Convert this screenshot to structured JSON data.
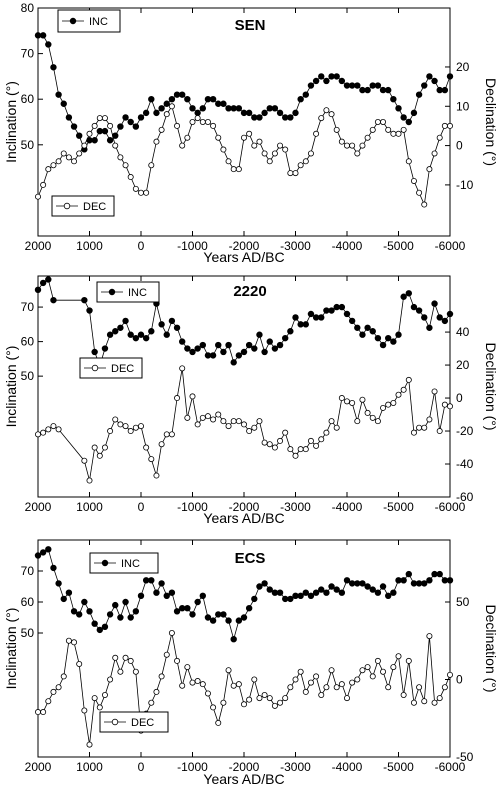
{
  "chart_data": [
    {
      "type": "line",
      "title": "SEN",
      "xlabel": "Years AD/BC",
      "ylabel_left": "Inclination (°)",
      "ylabel_right": "Declination (°)",
      "xlim": [
        2000,
        -6000
      ],
      "x_ticks": [
        2000,
        1000,
        0,
        -1000,
        -2000,
        -3000,
        -4000,
        -5000,
        -6000
      ],
      "x_tick_labels": [
        "2000",
        "1000",
        "0",
        "-1000",
        "-2000",
        "-3000",
        "-4000",
        "-5000",
        "-6000"
      ],
      "inc_ylim": [
        30,
        80
      ],
      "inc_ticks": [
        50,
        60,
        70,
        80
      ],
      "dec_ylim": [
        -23,
        35
      ],
      "dec_ticks": [
        -10,
        0,
        10,
        20
      ],
      "legend_inc": "INC",
      "legend_dec": "DEC",
      "series": [
        {
          "name": "INC",
          "x": [
            2000,
            1900,
            1800,
            1700,
            1600,
            1500,
            1400,
            1300,
            1200,
            1100,
            1000,
            900,
            800,
            700,
            600,
            500,
            400,
            300,
            200,
            100,
            0,
            -100,
            -200,
            -300,
            -400,
            -500,
            -600,
            -700,
            -800,
            -900,
            -1000,
            -1100,
            -1200,
            -1300,
            -1400,
            -1500,
            -1600,
            -1700,
            -1800,
            -1900,
            -2000,
            -2100,
            -2200,
            -2300,
            -2400,
            -2500,
            -2600,
            -2700,
            -2800,
            -2900,
            -3000,
            -3100,
            -3200,
            -3300,
            -3400,
            -3500,
            -3600,
            -3700,
            -3800,
            -3900,
            -4000,
            -4100,
            -4200,
            -4300,
            -4400,
            -4500,
            -4600,
            -4700,
            -4800,
            -4900,
            -5000,
            -5100,
            -5200,
            -5300,
            -5400,
            -5500,
            -5600,
            -5700,
            -5800,
            -5900,
            -6000
          ],
          "values": [
            74,
            74,
            72,
            67,
            61,
            59,
            56,
            54,
            52,
            49,
            51,
            51,
            53,
            53,
            51,
            52,
            54,
            56,
            55,
            54,
            56,
            57,
            60,
            57,
            58,
            59,
            60,
            61,
            61,
            60,
            58,
            57,
            58,
            60,
            60,
            59,
            59,
            58,
            58,
            58,
            57,
            57,
            56,
            56,
            57,
            58,
            58,
            57,
            56,
            56,
            57,
            60,
            61,
            63,
            64,
            65,
            64,
            65,
            65,
            64,
            63,
            63,
            63,
            62,
            62,
            63,
            63,
            62,
            62,
            60,
            58,
            56,
            55,
            57,
            61,
            63,
            65,
            64,
            62,
            62,
            65
          ]
        },
        {
          "name": "DEC",
          "x": [
            2000,
            1900,
            1800,
            1700,
            1600,
            1500,
            1400,
            1300,
            1200,
            1100,
            1000,
            900,
            800,
            700,
            600,
            500,
            400,
            300,
            200,
            100,
            0,
            -100,
            -200,
            -300,
            -400,
            -500,
            -600,
            -700,
            -800,
            -900,
            -1000,
            -1100,
            -1200,
            -1300,
            -1400,
            -1500,
            -1600,
            -1700,
            -1800,
            -1900,
            -2000,
            -2100,
            -2200,
            -2300,
            -2400,
            -2500,
            -2600,
            -2700,
            -2800,
            -2900,
            -3000,
            -3100,
            -3200,
            -3300,
            -3400,
            -3500,
            -3600,
            -3700,
            -3800,
            -3900,
            -4000,
            -4100,
            -4200,
            -4300,
            -4400,
            -4500,
            -4600,
            -4700,
            -4800,
            -4900,
            -5000,
            -5100,
            -5200,
            -5300,
            -5400,
            -5500,
            -5600,
            -5700,
            -5800,
            -5900,
            -6000
          ],
          "values": [
            -13,
            -10,
            -6,
            -5,
            -4,
            -2,
            -3,
            -4,
            -2,
            0,
            3,
            5,
            7,
            7,
            5,
            0,
            -3,
            -5,
            -8,
            -11,
            -12,
            -12,
            -5,
            1,
            4,
            8,
            10,
            5,
            0,
            2,
            6,
            7,
            6,
            6,
            5,
            2,
            -1,
            -4,
            -6,
            -6,
            2,
            3,
            0,
            1,
            -2,
            -4,
            -2,
            0,
            -1,
            -7,
            -7,
            -5,
            -4,
            -2,
            3,
            7,
            9,
            8,
            4,
            1,
            0,
            0,
            -2,
            0,
            2,
            4,
            6,
            6,
            4,
            3,
            3,
            4,
            -4,
            -9,
            -12,
            -15,
            -6,
            -2,
            2,
            5,
            5
          ]
        }
      ]
    },
    {
      "type": "line",
      "title": "2220",
      "xlabel": "Years AD/BC",
      "ylabel_left": "Inclination (°)",
      "ylabel_right": "Declination (°)",
      "xlim": [
        2000,
        -6000
      ],
      "x_ticks": [
        2000,
        1000,
        0,
        -1000,
        -2000,
        -3000,
        -4000,
        -5000,
        -6000
      ],
      "x_tick_labels": [
        "2000",
        "1000",
        "0",
        "-1000",
        "-2000",
        "-3000",
        "-4000",
        "-5000",
        "-6000"
      ],
      "inc_ylim": [
        15,
        79
      ],
      "inc_ticks": [
        50,
        60,
        70
      ],
      "dec_ylim": [
        -60,
        74
      ],
      "dec_ticks": [
        -60,
        -40,
        -20,
        0,
        20,
        40
      ],
      "legend_inc": "INC",
      "legend_dec": "DEC",
      "series": [
        {
          "name": "INC",
          "x": [
            2000,
            1900,
            1800,
            1700,
            1100,
            1000,
            900,
            800,
            700,
            600,
            500,
            400,
            300,
            200,
            100,
            0,
            -100,
            -200,
            -300,
            -400,
            -500,
            -600,
            -700,
            -800,
            -900,
            -1000,
            -1100,
            -1200,
            -1300,
            -1400,
            -1500,
            -1600,
            -1700,
            -1800,
            -1900,
            -2000,
            -2100,
            -2200,
            -2300,
            -2400,
            -2500,
            -2600,
            -2700,
            -2800,
            -2900,
            -3000,
            -3100,
            -3200,
            -3300,
            -3400,
            -3500,
            -3600,
            -3700,
            -3800,
            -3900,
            -4000,
            -4100,
            -4200,
            -4300,
            -4400,
            -4500,
            -4600,
            -4700,
            -4800,
            -4900,
            -5000,
            -5100,
            -5200,
            -5300,
            -5400,
            -5500,
            -5600,
            -5700,
            -5800,
            -5900,
            -6000
          ],
          "values": [
            75,
            77,
            78,
            72,
            72,
            69,
            57,
            53,
            58,
            62,
            63,
            64,
            66,
            62,
            61,
            62,
            61,
            63,
            71,
            65,
            62,
            66,
            64,
            60,
            58,
            57,
            58,
            59,
            56,
            56,
            59,
            57,
            59,
            54,
            56,
            57,
            59,
            58,
            62,
            57,
            60,
            58,
            59,
            61,
            63,
            67,
            65,
            65,
            68,
            67,
            67,
            69,
            69,
            70,
            70,
            68,
            66,
            64,
            62,
            64,
            63,
            61,
            59,
            61,
            60,
            62,
            73,
            74,
            70,
            69,
            67,
            64,
            71,
            67,
            66,
            68
          ]
        },
        {
          "name": "DEC",
          "x": [
            2000,
            1900,
            1800,
            1700,
            1600,
            1100,
            1000,
            900,
            800,
            700,
            600,
            500,
            400,
            300,
            200,
            100,
            0,
            -100,
            -200,
            -300,
            -400,
            -500,
            -600,
            -700,
            -800,
            -900,
            -1000,
            -1100,
            -1200,
            -1300,
            -1400,
            -1500,
            -1600,
            -1700,
            -1800,
            -1900,
            -2000,
            -2100,
            -2200,
            -2300,
            -2400,
            -2500,
            -2600,
            -2700,
            -2800,
            -2900,
            -3000,
            -3100,
            -3200,
            -3300,
            -3400,
            -3500,
            -3600,
            -3700,
            -3800,
            -3900,
            -4000,
            -4100,
            -4200,
            -4300,
            -4400,
            -4500,
            -4600,
            -4700,
            -4800,
            -4900,
            -5000,
            -5100,
            -5200,
            -5300,
            -5400,
            -5500,
            -5600,
            -5700,
            -5800,
            -5900,
            -6000
          ],
          "values": [
            -22,
            -21,
            -19,
            -17,
            -19,
            -38,
            -50,
            -30,
            -35,
            -30,
            -20,
            -13,
            -16,
            -17,
            -20,
            -18,
            -17,
            -30,
            -37,
            -47,
            -28,
            -22,
            -22,
            0,
            18,
            -12,
            1,
            -16,
            -12,
            -11,
            -13,
            -10,
            -14,
            -17,
            -14,
            -14,
            -16,
            -20,
            -18,
            -14,
            -27,
            -28,
            -30,
            -26,
            -21,
            -31,
            -35,
            -31,
            -31,
            -26,
            -29,
            -25,
            -21,
            -14,
            -18,
            0,
            -2,
            -3,
            -14,
            -1,
            -9,
            -12,
            -14,
            -6,
            -4,
            -3,
            2,
            5,
            11,
            -21,
            -18,
            -18,
            -13,
            4,
            -20,
            -4,
            -5
          ]
        }
      ]
    },
    {
      "type": "line",
      "title": "ECS",
      "xlabel": "Years AD/BC",
      "ylabel_left": "Inclination (°)",
      "ylabel_right": "Declination (°)",
      "xlim": [
        2000,
        -6000
      ],
      "x_ticks": [
        2000,
        1000,
        0,
        -1000,
        -2000,
        -3000,
        -4000,
        -5000,
        -6000
      ],
      "x_tick_labels": [
        "2000",
        "1000",
        "0",
        "-1000",
        "-2000",
        "-3000",
        "-4000",
        "-5000",
        "-6000"
      ],
      "inc_ylim": [
        10,
        80
      ],
      "inc_ticks": [
        50,
        60,
        70
      ],
      "dec_ylim": [
        -50,
        90
      ],
      "dec_ticks": [
        -50,
        0,
        50
      ],
      "legend_inc": "INC",
      "legend_dec": "DEC",
      "series": [
        {
          "name": "INC",
          "x": [
            2000,
            1900,
            1800,
            1700,
            1600,
            1500,
            1400,
            1300,
            1200,
            1100,
            1000,
            900,
            800,
            700,
            600,
            500,
            400,
            300,
            200,
            100,
            0,
            -100,
            -200,
            -300,
            -400,
            -500,
            -600,
            -700,
            -800,
            -900,
            -1000,
            -1100,
            -1200,
            -1300,
            -1400,
            -1500,
            -1600,
            -1700,
            -1800,
            -1900,
            -2000,
            -2100,
            -2200,
            -2300,
            -2400,
            -2500,
            -2600,
            -2700,
            -2800,
            -2900,
            -3000,
            -3100,
            -3200,
            -3300,
            -3400,
            -3500,
            -3600,
            -3700,
            -3800,
            -3900,
            -4000,
            -4100,
            -4200,
            -4300,
            -4400,
            -4500,
            -4600,
            -4700,
            -4800,
            -4900,
            -5000,
            -5100,
            -5200,
            -5300,
            -5400,
            -5500,
            -5600,
            -5700,
            -5800,
            -5900,
            -6000
          ],
          "values": [
            75,
            76,
            77,
            71,
            66,
            61,
            63,
            57,
            56,
            60,
            57,
            53,
            51,
            52,
            56,
            59,
            55,
            60,
            55,
            57,
            62,
            67,
            67,
            63,
            66,
            62,
            63,
            57,
            58,
            58,
            56,
            60,
            62,
            55,
            54,
            56,
            56,
            54,
            48,
            54,
            55,
            58,
            61,
            65,
            66,
            64,
            63,
            63,
            61,
            61,
            62,
            62,
            63,
            62,
            63,
            64,
            63,
            65,
            64,
            63,
            67,
            66,
            66,
            66,
            65,
            64,
            63,
            65,
            62,
            63,
            67,
            67,
            69,
            66,
            66,
            66,
            67,
            69,
            69,
            67,
            67
          ]
        },
        {
          "name": "DEC",
          "x": [
            2000,
            1900,
            1800,
            1700,
            1600,
            1500,
            1400,
            1300,
            1200,
            1100,
            1000,
            900,
            800,
            700,
            600,
            500,
            400,
            300,
            200,
            100,
            0,
            -100,
            -200,
            -300,
            -400,
            -500,
            -600,
            -700,
            -800,
            -900,
            -1000,
            -1100,
            -1200,
            -1300,
            -1400,
            -1500,
            -1600,
            -1700,
            -1800,
            -1900,
            -2000,
            -2100,
            -2200,
            -2300,
            -2400,
            -2500,
            -2600,
            -2700,
            -2800,
            -2900,
            -3000,
            -3100,
            -3200,
            -3300,
            -3400,
            -3500,
            -3600,
            -3700,
            -3800,
            -3900,
            -4000,
            -4100,
            -4200,
            -4300,
            -4400,
            -4500,
            -4600,
            -4700,
            -4800,
            -4900,
            -5000,
            -5100,
            -5200,
            -5300,
            -5400,
            -5500,
            -5600,
            -5700,
            -5800,
            -5900,
            -6000
          ],
          "values": [
            -21,
            -21,
            -14,
            -8,
            -5,
            2,
            25,
            24,
            10,
            -20,
            -42,
            -12,
            -18,
            -10,
            0,
            14,
            5,
            14,
            12,
            5,
            -33,
            -22,
            -15,
            -8,
            2,
            16,
            30,
            12,
            -4,
            8,
            -2,
            -1,
            -3,
            -9,
            -18,
            -28,
            -15,
            6,
            -4,
            -3,
            -16,
            -13,
            0,
            -12,
            -10,
            -12,
            -17,
            -15,
            -12,
            -5,
            0,
            5,
            -8,
            -2,
            2,
            -10,
            -5,
            6,
            -5,
            -3,
            -12,
            -2,
            0,
            6,
            8,
            2,
            12,
            5,
            -5,
            8,
            15,
            -10,
            12,
            -15,
            -5,
            -14,
            28,
            -15,
            -12,
            -5,
            3
          ]
        }
      ]
    }
  ]
}
